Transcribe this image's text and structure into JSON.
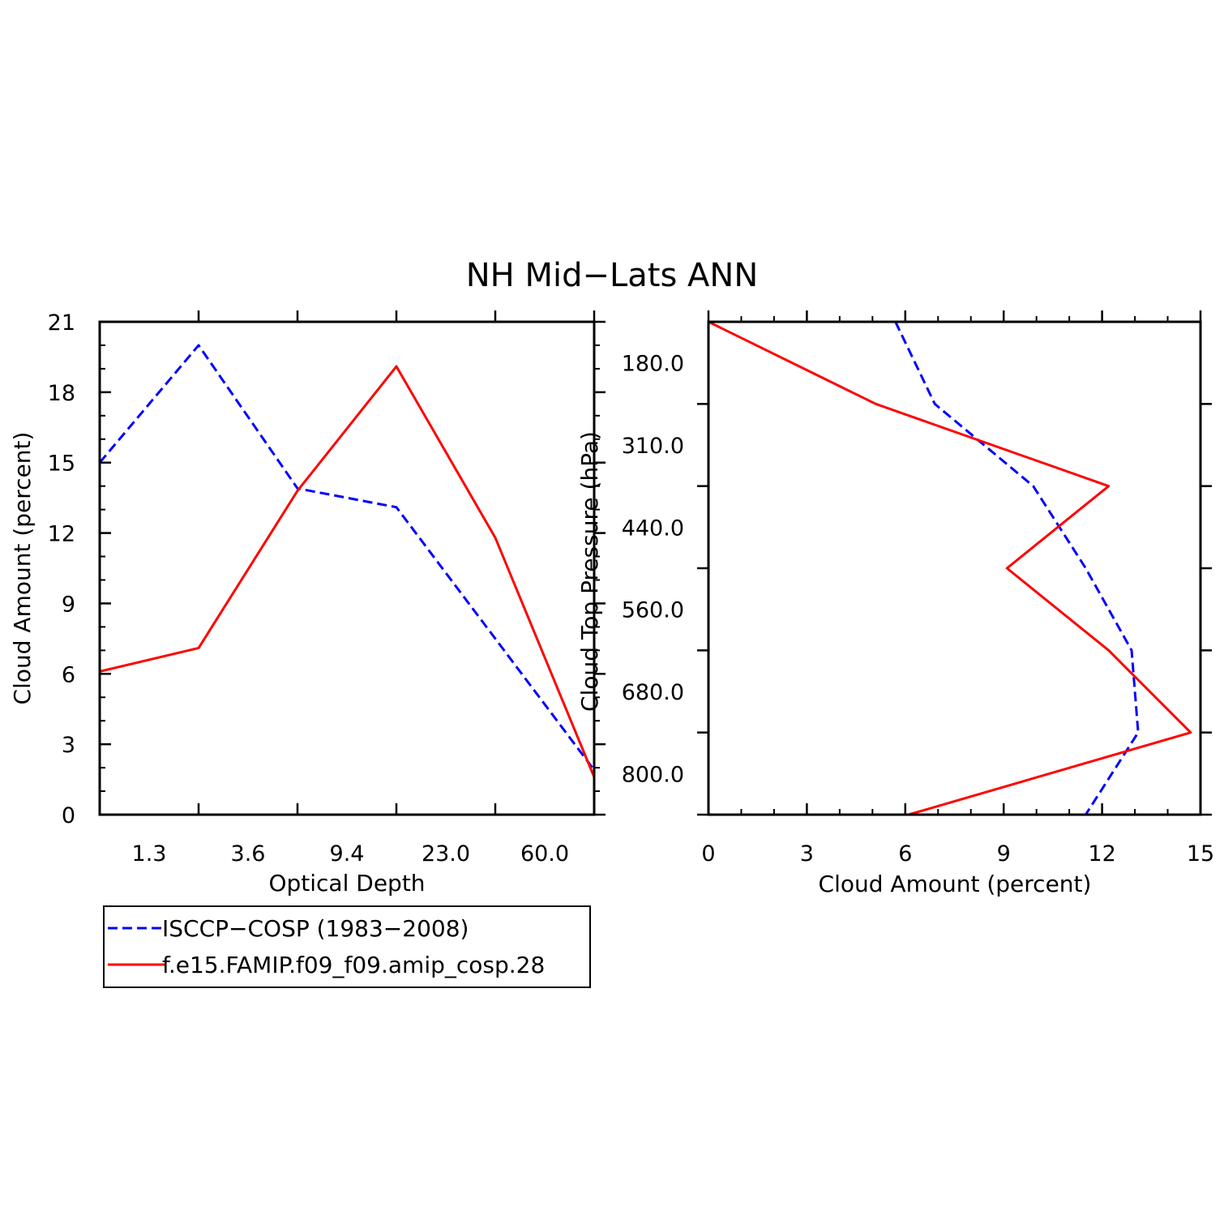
{
  "chart_data": [
    {
      "type": "line",
      "title": "NH Mid-Lats ANN",
      "xlabel": "Optical Depth",
      "ylabel": "Cloud Amount (percent)",
      "x_tick_labels": [
        "1.3",
        "3.6",
        "9.4",
        "23.0",
        "60.0"
      ],
      "bin_count": 5,
      "ylim": [
        0,
        21
      ],
      "y_ticks": [
        0,
        3,
        6,
        9,
        12,
        15,
        18,
        21
      ],
      "x": [
        0,
        1,
        2,
        3,
        4,
        5
      ],
      "series": [
        {
          "name": "ISCCP-COSP (1983-2008)",
          "color": "#0000ff",
          "style": "dashed",
          "values": [
            15.0,
            20.0,
            13.9,
            13.1,
            7.5,
            1.9
          ]
        },
        {
          "name": "f.e15.FAMIP.f09_f09.amip_cosp.28",
          "color": "#ff0000",
          "style": "solid",
          "values": [
            6.1,
            7.1,
            13.8,
            19.1,
            11.8,
            1.6
          ]
        }
      ]
    },
    {
      "type": "line",
      "orientation": "vertical-profile",
      "xlabel": "Cloud Amount (percent)",
      "ylabel": "Cloud Top Pressure (hPa)",
      "xlim": [
        0,
        15
      ],
      "x_ticks": [
        0,
        3,
        6,
        9,
        12,
        15
      ],
      "y_tick_labels": [
        "180.0",
        "310.0",
        "440.0",
        "560.0",
        "680.0",
        "800.0"
      ],
      "levels": [
        0,
        1,
        2,
        3,
        4,
        5,
        6
      ],
      "series": [
        {
          "name": "ISCCP-COSP (1983-2008)",
          "color": "#0000ff",
          "style": "dashed",
          "values": [
            5.7,
            6.9,
            9.9,
            11.5,
            12.9,
            13.1,
            11.5
          ]
        },
        {
          "name": "f.e15.FAMIP.f09_f09.amip_cosp.28",
          "color": "#ff0000",
          "style": "solid",
          "values": [
            0.0,
            5.1,
            12.2,
            9.1,
            12.2,
            14.7,
            6.1
          ]
        }
      ]
    }
  ],
  "legend": {
    "items": [
      {
        "label": "ISCCP−COSP (1983−2008)",
        "color": "#0000ff",
        "style": "dashed"
      },
      {
        "label": "f.e15.FAMIP.f09_f09.amip_cosp.28",
        "color": "#ff0000",
        "style": "solid"
      }
    ]
  },
  "labels": {
    "title": "NH Mid−Lats ANN",
    "left_xlabel": "Optical Depth",
    "left_ylabel": "Cloud Amount (percent)",
    "right_xlabel": "Cloud Amount (percent)",
    "right_ylabel": "Cloud Top Pressure (hPa)"
  }
}
